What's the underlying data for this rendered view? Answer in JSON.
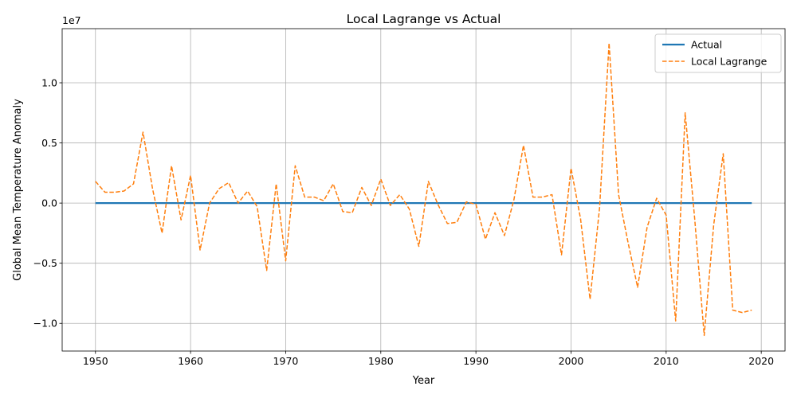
{
  "chart_data": {
    "type": "line",
    "title": "Local Lagrange vs Actual",
    "xlabel": "Year",
    "ylabel": "Global Mean Temperature Anomaly",
    "y_offset_label": "1e7",
    "xlim": [
      1946.5,
      2022.5
    ],
    "ylim": [
      -12300000,
      14500000
    ],
    "x_ticks": [
      1950,
      1960,
      1970,
      1980,
      1990,
      2000,
      2010,
      2020
    ],
    "y_ticks": [
      -10000000,
      -5000000,
      0,
      5000000,
      10000000
    ],
    "y_tick_labels": [
      "−1.0",
      "−0.5",
      "0.0",
      "0.5",
      "1.0"
    ],
    "grid": true,
    "legend_position": "top-right",
    "series": [
      {
        "name": "Actual",
        "color": "#1f77b4",
        "style": "solid",
        "x": [
          1950,
          2019
        ],
        "values": [
          0,
          0
        ]
      },
      {
        "name": "Local Lagrange",
        "color": "#ff7f0e",
        "style": "dashed",
        "x": [
          1950,
          1951,
          1952,
          1953,
          1954,
          1955,
          1956,
          1957,
          1958,
          1959,
          1960,
          1961,
          1962,
          1963,
          1964,
          1965,
          1966,
          1967,
          1968,
          1969,
          1970,
          1971,
          1972,
          1973,
          1974,
          1975,
          1976,
          1977,
          1978,
          1979,
          1980,
          1981,
          1982,
          1983,
          1984,
          1985,
          1986,
          1987,
          1988,
          1989,
          1990,
          1991,
          1992,
          1993,
          1994,
          1995,
          1996,
          1997,
          1998,
          1999,
          2000,
          2001,
          2002,
          2003,
          2004,
          2005,
          2006,
          2007,
          2008,
          2009,
          2010,
          2011,
          2012,
          2013,
          2014,
          2015,
          2016,
          2017,
          2018,
          2019
        ],
        "values": [
          1800000,
          900000,
          900000,
          1000000,
          1600000,
          5900000,
          1200000,
          -2500000,
          3100000,
          -1400000,
          2300000,
          -3900000,
          0,
          1200000,
          1700000,
          0,
          1000000,
          -300000,
          -5600000,
          1600000,
          -4800000,
          3100000,
          500000,
          500000,
          200000,
          1600000,
          -700000,
          -800000,
          1300000,
          -200000,
          2000000,
          -200000,
          700000,
          -500000,
          -3600000,
          1800000,
          -100000,
          -1700000,
          -1600000,
          100000,
          -100000,
          -3000000,
          -800000,
          -2700000,
          300000,
          4800000,
          500000,
          500000,
          700000,
          -4300000,
          2900000,
          -1300000,
          -8000000,
          -400000,
          13300000,
          700000,
          -3300000,
          -7000000,
          -2000000,
          400000,
          -1000000,
          -9800000,
          7500000,
          -1300000,
          -11000000,
          -1800000,
          4100000,
          -8900000,
          -9100000,
          -8900000
        ]
      }
    ]
  }
}
